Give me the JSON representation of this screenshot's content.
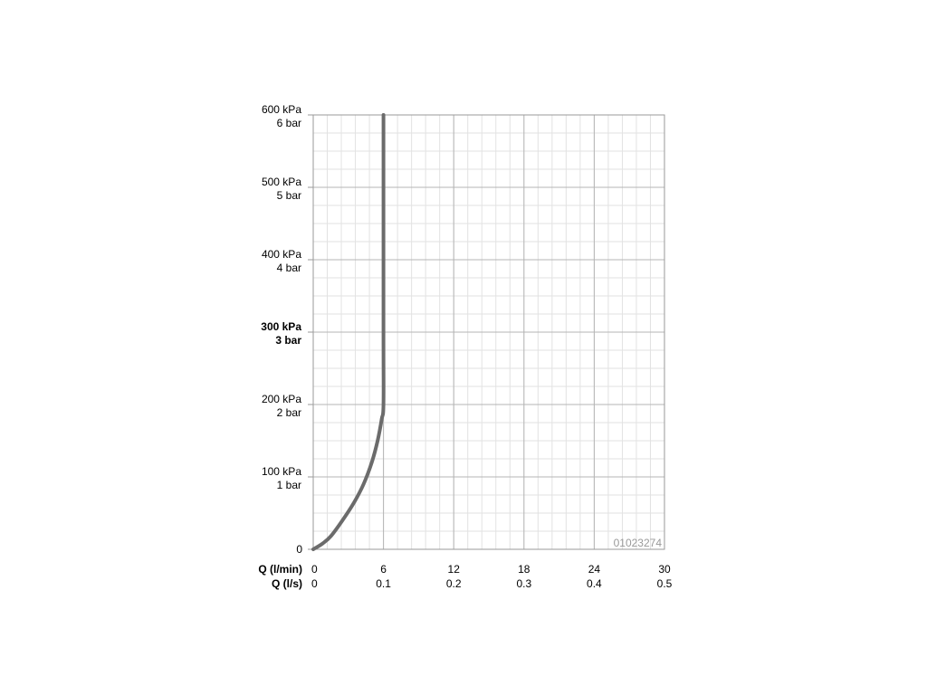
{
  "chart_data": {
    "type": "line",
    "code": "01023274",
    "x_axis": {
      "range": [
        0,
        30
      ],
      "rows": [
        {
          "label": "Q (l/min)",
          "ticks": [
            "0",
            "6",
            "12",
            "18",
            "24",
            "30"
          ]
        },
        {
          "label": "Q (l/s)",
          "ticks": [
            "0",
            "0.1",
            "0.2",
            "0.3",
            "0.4",
            "0.5"
          ]
        }
      ]
    },
    "y_axis": {
      "range": [
        0,
        600
      ],
      "ticks": [
        {
          "value": 0,
          "lines": [
            "0"
          ],
          "bold": false
        },
        {
          "value": 100,
          "lines": [
            "100 kPa",
            "1 bar"
          ],
          "bold": false
        },
        {
          "value": 200,
          "lines": [
            "200 kPa",
            "2 bar"
          ],
          "bold": false
        },
        {
          "value": 300,
          "lines": [
            "300 kPa",
            "3 bar"
          ],
          "bold": true
        },
        {
          "value": 400,
          "lines": [
            "400 kPa",
            "4 bar"
          ],
          "bold": false
        },
        {
          "value": 500,
          "lines": [
            "500 kPa",
            "5 bar"
          ],
          "bold": false
        },
        {
          "value": 600,
          "lines": [
            "600 kPa",
            "6 bar"
          ],
          "bold": false
        }
      ]
    },
    "grid": true,
    "series": [
      {
        "color": "#6b6b6b",
        "x": [
          0,
          0.8,
          1.5,
          2.5,
          3.5,
          4.3,
          5.0,
          5.5,
          5.85,
          6.0,
          6.0,
          6.0
        ],
        "y": [
          0,
          8,
          18,
          40,
          65,
          90,
          120,
          150,
          180,
          200,
          300,
          600
        ]
      }
    ]
  }
}
